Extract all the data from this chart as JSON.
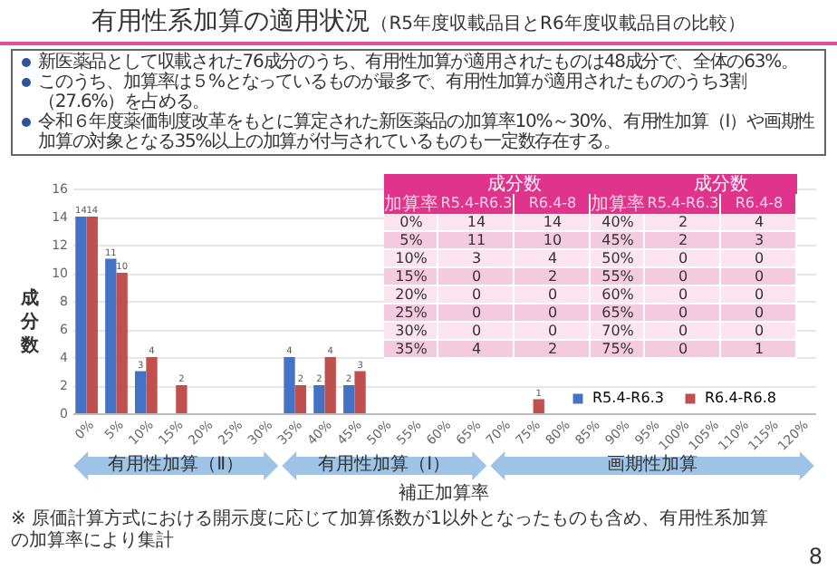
{
  "chart_data": [
    {
      "type": "bar",
      "title": "有用性系加算の適用状況",
      "subtitle": "（R5年度収載品目とR6年度収載品目の比較）",
      "xlabel": "補正加算率",
      "ylabel": "成分数",
      "categories": [
        "0%",
        "5%",
        "10%",
        "15%",
        "20%",
        "25%",
        "30%",
        "35%",
        "40%",
        "45%",
        "50%",
        "55%",
        "60%",
        "65%",
        "70%",
        "75%",
        "80%",
        "85%",
        "90%",
        "95%",
        "100%",
        "105%",
        "110%",
        "115%",
        "120%"
      ],
      "series": [
        {
          "name": "R5.4-R6.3",
          "color": "#4472c4",
          "values": [
            14,
            11,
            3,
            0,
            0,
            0,
            0,
            4,
            2,
            2,
            0,
            0,
            0,
            0,
            0,
            0,
            0,
            0,
            0,
            0,
            0,
            0,
            0,
            0,
            0
          ],
          "value_labels": [
            "14",
            "11",
            "3",
            null,
            null,
            null,
            null,
            "4",
            "2",
            "2",
            null,
            null,
            null,
            null,
            null,
            null,
            null,
            null,
            null,
            null,
            null,
            null,
            null,
            null,
            null
          ]
        },
        {
          "name": "R6.4-R6.8",
          "color": "#c0504d",
          "values": [
            14,
            10,
            4,
            2,
            0,
            0,
            0,
            2,
            4,
            3,
            0,
            0,
            0,
            0,
            0,
            1,
            0,
            0,
            0,
            0,
            0,
            0,
            0,
            0,
            0
          ],
          "value_labels": [
            "14",
            "10",
            "4",
            "2",
            null,
            null,
            null,
            "2",
            "4",
            "3",
            null,
            null,
            null,
            null,
            null,
            "1",
            null,
            null,
            null,
            null,
            null,
            null,
            null,
            null,
            null
          ]
        }
      ],
      "ylim": [
        0,
        16
      ],
      "yticks": [
        0,
        2,
        4,
        6,
        8,
        10,
        12,
        14,
        16
      ],
      "grid": "y",
      "legend": "right",
      "annotations": [
        "新医薬品として収載された76成分のうち、有用性加算が適用されたものは48成分で、全体の63%。",
        "このうち、加算率は５%となっているものが最多で、有用性加算が適用されたもののうち3割（27.6%）を占める。",
        "令和６年度薬価制度改革をもとに算定された新医薬品の加算率10%～30%、有用性加算（Ⅰ）や画期性加算の対象となる35%以上の加算が付与されているものも一定数存在する。",
        "有用性加算（Ⅱ）",
        "有用性加算（Ⅰ）",
        "画期性加算",
        "※ 原価計算方式における開示度に応じて加算係数が1以外となったものも含め、有用性系加算の加算率により集計",
        "8"
      ]
    },
    {
      "type": "heatmap",
      "title": "成分数",
      "ylabel": "加算率",
      "data_labels": true,
      "categories": [
        "R5.4-R6.3",
        "R6.4-8",
        "R5.4-R6.3",
        "R6.4-8"
      ],
      "y_categories": [
        "0%",
        "5%",
        "10%",
        "15%",
        "20%",
        "25%",
        "30%",
        "35%"
      ],
      "y2_categories": [
        "40%",
        "45%",
        "50%",
        "55%",
        "60%",
        "65%",
        "70%",
        "75%"
      ],
      "cells": [
        [
          14,
          14,
          2,
          4
        ],
        [
          11,
          10,
          2,
          3
        ],
        [
          3,
          4,
          0,
          0
        ],
        [
          0,
          2,
          0,
          0
        ],
        [
          0,
          0,
          0,
          0
        ],
        [
          0,
          0,
          0,
          0
        ],
        [
          0,
          0,
          0,
          0
        ],
        [
          4,
          2,
          0,
          1
        ]
      ]
    }
  ]
}
